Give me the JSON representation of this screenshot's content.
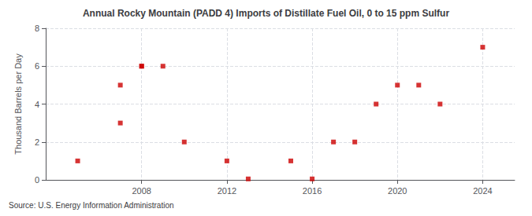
{
  "chart_data": {
    "type": "scatter",
    "title": "Annual Rocky Mountain (PADD 4) Imports of Distillate Fuel Oil, 0 to 15 ppm Sulfur",
    "ylabel": "Thousand Barrels per Day",
    "source": "Source: U.S. Energy Information Administration",
    "x": [
      2005,
      2007,
      2008,
      2009,
      2010,
      2012,
      2013,
      2015,
      2016,
      2017,
      2018,
      2019,
      2020,
      2021,
      2022,
      2024,
      2007,
      2008
    ],
    "values": [
      1,
      5,
      6,
      6,
      2,
      1,
      0.05,
      1,
      0.05,
      2,
      2,
      4,
      5,
      5,
      4,
      7,
      3,
      6
    ],
    "color": "#cc0000",
    "marker": "square",
    "xlim": [
      2003.5,
      2025.5
    ],
    "xticks": [
      2008,
      2012,
      2016,
      2020,
      2024
    ],
    "ylim": [
      0,
      8
    ],
    "yticks": [
      0,
      2,
      4,
      6,
      8
    ],
    "grid": true
  }
}
